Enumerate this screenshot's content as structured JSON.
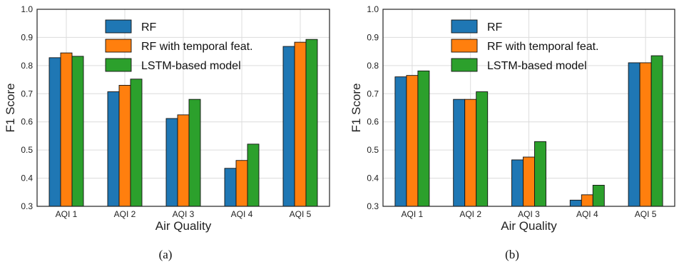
{
  "chart_data": [
    {
      "type": "bar",
      "caption": "(a)",
      "categories": [
        "AQI 1",
        "AQI 2",
        "AQI 3",
        "AQI 4",
        "AQI 5"
      ],
      "series": [
        {
          "name": "RF",
          "color": "#1f77b4",
          "values": [
            0.828,
            0.707,
            0.612,
            0.435,
            0.868
          ]
        },
        {
          "name": "RF with temporal feat.",
          "color": "#ff7f0e",
          "values": [
            0.845,
            0.73,
            0.625,
            0.463,
            0.883
          ]
        },
        {
          "name": "LSTM-based model",
          "color": "#2ca02c",
          "values": [
            0.833,
            0.752,
            0.68,
            0.521,
            0.893
          ]
        }
      ],
      "xlabel": "Air Quality",
      "ylabel": "F1 Score",
      "ylim": [
        0.3,
        1.0
      ],
      "yticks": [
        "0.3",
        "0.4",
        "0.5",
        "0.6",
        "0.7",
        "0.8",
        "0.9",
        "1.0"
      ],
      "grid": true,
      "legend": "top-center"
    },
    {
      "type": "bar",
      "caption": "(b)",
      "categories": [
        "AQI 1",
        "AQI 2",
        "AQI 3",
        "AQI 4",
        "AQI 5"
      ],
      "series": [
        {
          "name": "RF",
          "color": "#1f77b4",
          "values": [
            0.76,
            0.68,
            0.465,
            0.322,
            0.81
          ]
        },
        {
          "name": "RF with temporal feat.",
          "color": "#ff7f0e",
          "values": [
            0.765,
            0.68,
            0.475,
            0.341,
            0.81
          ]
        },
        {
          "name": "LSTM-based model",
          "color": "#2ca02c",
          "values": [
            0.781,
            0.707,
            0.53,
            0.375,
            0.835
          ]
        }
      ],
      "xlabel": "Air Quality",
      "ylabel": "F1 Score",
      "ylim": [
        0.3,
        1.0
      ],
      "yticks": [
        "0.3",
        "0.4",
        "0.5",
        "0.6",
        "0.7",
        "0.8",
        "0.9",
        "1.0"
      ],
      "grid": true,
      "legend": "top-center"
    }
  ]
}
